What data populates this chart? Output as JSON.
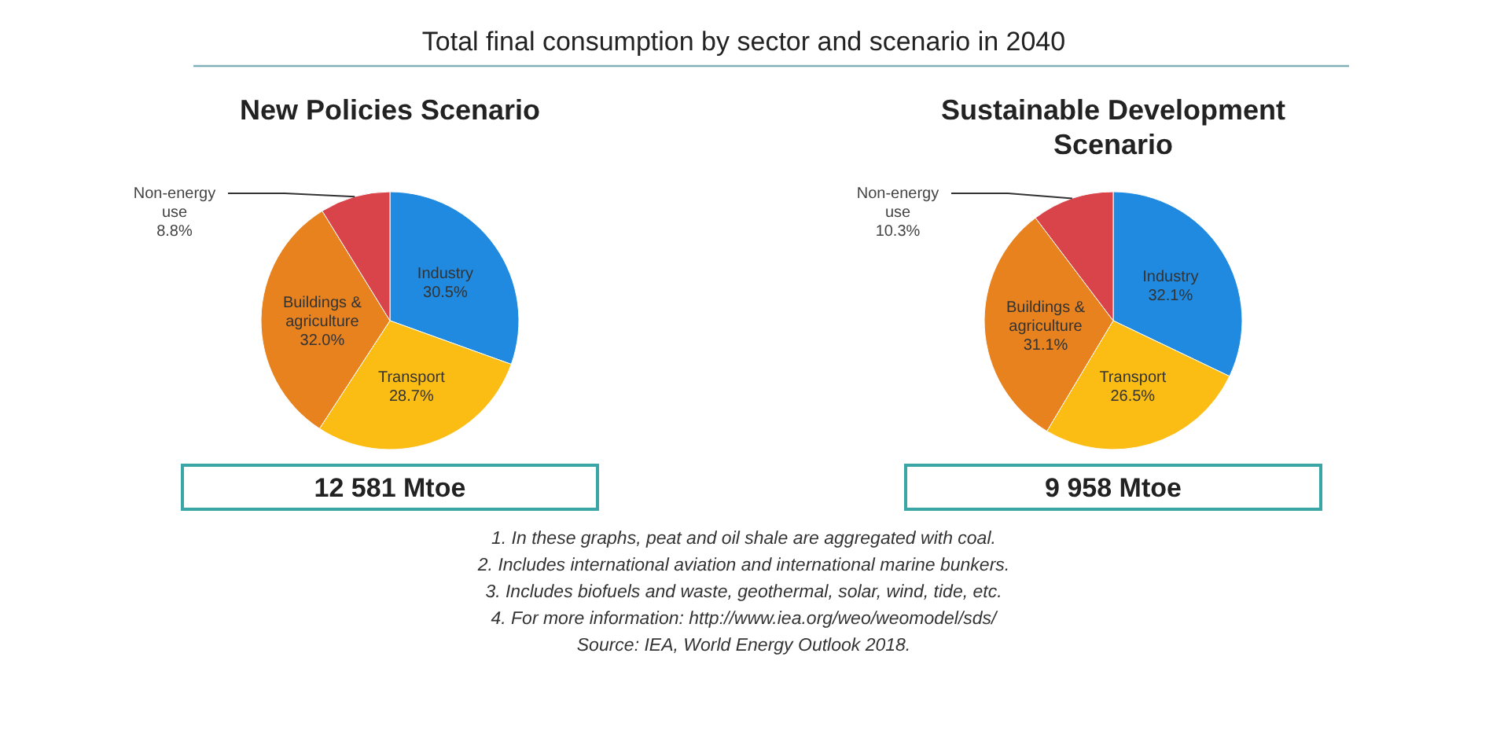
{
  "chart_data": [
    {
      "type": "pie",
      "title": "Total final consumption by sector and scenario in 2040",
      "subtitle": "New Policies Scenario",
      "categories": [
        "Industry",
        "Transport",
        "Buildings & agriculture",
        "Non-energy use"
      ],
      "values": [
        30.5,
        28.7,
        32.0,
        8.8
      ],
      "value_labels": [
        "30.5%",
        "28.7%",
        "32.0%",
        "8.8%"
      ],
      "colors": [
        "#1f8ae0",
        "#fbbd14",
        "#e8821f",
        "#d9434a"
      ],
      "annotations": [
        "12 581 Mtoe",
        "1. In these graphs, peat and oil shale are aggregated with coal.",
        "2. Includes international aviation and international marine bunkers.",
        "3. Includes biofuels and waste, geothermal, solar, wind, tide, etc.",
        "4. For more information: http://www.iea.org/weo/weomodel/sds/",
        "Source: IEA, World Energy Outlook 2018."
      ]
    },
    {
      "type": "pie",
      "title": "Sustainable Development Scenario",
      "categories": [
        "Industry",
        "Transport",
        "Buildings & agriculture",
        "Non-energy use"
      ],
      "values": [
        32.1,
        26.5,
        31.1,
        10.3
      ],
      "value_labels": [
        "32.1%",
        "26.5%",
        "31.1%",
        "10.3%"
      ],
      "colors": [
        "#1f8ae0",
        "#fbbd14",
        "#e8821f",
        "#d9434a"
      ],
      "annotations": [
        "9 958 Mtoe"
      ]
    }
  ]
}
